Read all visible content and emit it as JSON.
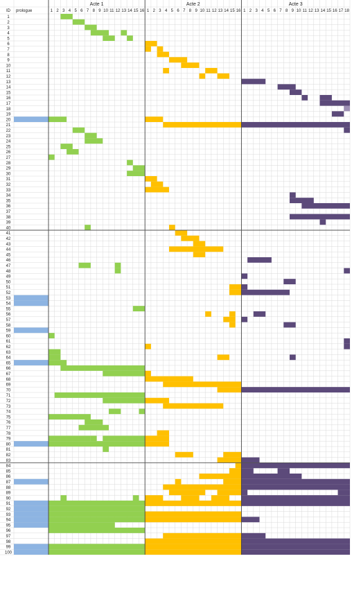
{
  "chart_data": {
    "type": "heatmap",
    "header": {
      "id_label": "ID",
      "prologue_label": "prologue"
    },
    "acts": [
      {
        "name": "Acte 1",
        "scenes": 16,
        "color": "#92d050"
      },
      {
        "name": "Acte 2",
        "scenes": 16,
        "color": "#ffc000"
      },
      {
        "name": "Acte 3",
        "scenes": 18,
        "color": "#5c4a7a"
      }
    ],
    "prologue_color": "#8db4e2",
    "highlight_color": "#9e8fb4",
    "prologue_rows": [
      20,
      53,
      54,
      59,
      65,
      80,
      87,
      91,
      92,
      93,
      94,
      95,
      99,
      100
    ],
    "highlights": [
      {
        "id": 18,
        "act": 3,
        "scene": 18
      }
    ],
    "characters": [
      {
        "id": 1,
        "a1": [
          [
            3,
            4
          ]
        ],
        "a2": [],
        "a3": []
      },
      {
        "id": 2,
        "a1": [
          [
            5,
            6
          ]
        ],
        "a2": [],
        "a3": []
      },
      {
        "id": 3,
        "a1": [
          [
            7,
            8
          ]
        ],
        "a2": [],
        "a3": []
      },
      {
        "id": 4,
        "a1": [
          [
            8,
            10
          ],
          [
            13,
            13
          ]
        ],
        "a2": [],
        "a3": []
      },
      {
        "id": 5,
        "a1": [
          [
            10,
            11
          ],
          [
            14,
            14
          ]
        ],
        "a2": [],
        "a3": []
      },
      {
        "id": 6,
        "a1": [],
        "a2": [
          [
            1,
            2
          ]
        ],
        "a3": []
      },
      {
        "id": 7,
        "a1": [],
        "a2": [
          [
            1,
            1
          ],
          [
            3,
            3
          ]
        ],
        "a3": []
      },
      {
        "id": 8,
        "a1": [],
        "a2": [
          [
            3,
            4
          ]
        ],
        "a3": []
      },
      {
        "id": 9,
        "a1": [],
        "a2": [
          [
            5,
            7
          ]
        ],
        "a3": []
      },
      {
        "id": 10,
        "a1": [],
        "a2": [
          [
            7,
            9
          ]
        ],
        "a3": []
      },
      {
        "id": 11,
        "a1": [],
        "a2": [
          [
            4,
            4
          ],
          [
            11,
            12
          ]
        ],
        "a3": []
      },
      {
        "id": 12,
        "a1": [],
        "a2": [
          [
            10,
            10
          ],
          [
            13,
            14
          ]
        ],
        "a3": []
      },
      {
        "id": 13,
        "a1": [],
        "a2": [],
        "a3": [
          [
            1,
            4
          ]
        ]
      },
      {
        "id": 14,
        "a1": [],
        "a2": [],
        "a3": [
          [
            7,
            9
          ]
        ]
      },
      {
        "id": 15,
        "a1": [],
        "a2": [],
        "a3": [
          [
            9,
            10
          ]
        ]
      },
      {
        "id": 16,
        "a1": [],
        "a2": [],
        "a3": [
          [
            11,
            11
          ],
          [
            14,
            15
          ]
        ]
      },
      {
        "id": 17,
        "a1": [],
        "a2": [],
        "a3": [
          [
            14,
            18
          ]
        ]
      },
      {
        "id": 18,
        "a1": [],
        "a2": [],
        "a3": []
      },
      {
        "id": 19,
        "a1": [],
        "a2": [],
        "a3": [
          [
            16,
            17
          ]
        ]
      },
      {
        "id": 20,
        "a1": [
          [
            1,
            3
          ]
        ],
        "a2": [
          [
            1,
            3
          ]
        ],
        "a3": []
      },
      {
        "id": 21,
        "a1": [],
        "a2": [
          [
            4,
            16
          ]
        ],
        "a3": [
          [
            1,
            18
          ]
        ]
      },
      {
        "id": 22,
        "a1": [
          [
            5,
            6
          ]
        ],
        "a2": [],
        "a3": [
          [
            18,
            18
          ]
        ]
      },
      {
        "id": 23,
        "a1": [
          [
            7,
            8
          ]
        ],
        "a2": [],
        "a3": []
      },
      {
        "id": 24,
        "a1": [
          [
            7,
            9
          ]
        ],
        "a2": [],
        "a3": []
      },
      {
        "id": 25,
        "a1": [
          [
            3,
            4
          ]
        ],
        "a2": [],
        "a3": []
      },
      {
        "id": 26,
        "a1": [
          [
            4,
            5
          ]
        ],
        "a2": [],
        "a3": []
      },
      {
        "id": 27,
        "a1": [
          [
            1,
            1
          ]
        ],
        "a2": [],
        "a3": []
      },
      {
        "id": 28,
        "a1": [
          [
            14,
            14
          ]
        ],
        "a2": [],
        "a3": []
      },
      {
        "id": 29,
        "a1": [
          [
            15,
            16
          ]
        ],
        "a2": [],
        "a3": []
      },
      {
        "id": 30,
        "a1": [
          [
            14,
            16
          ]
        ],
        "a2": [],
        "a3": []
      },
      {
        "id": 31,
        "a1": [],
        "a2": [
          [
            1,
            2
          ]
        ],
        "a3": []
      },
      {
        "id": 32,
        "a1": [],
        "a2": [
          [
            2,
            3
          ]
        ],
        "a3": []
      },
      {
        "id": 33,
        "a1": [],
        "a2": [
          [
            1,
            4
          ]
        ],
        "a3": []
      },
      {
        "id": 34,
        "a1": [],
        "a2": [],
        "a3": [
          [
            9,
            9
          ]
        ]
      },
      {
        "id": 35,
        "a1": [],
        "a2": [],
        "a3": [
          [
            9,
            12
          ]
        ]
      },
      {
        "id": 36,
        "a1": [],
        "a2": [],
        "a3": [
          [
            11,
            18
          ]
        ]
      },
      {
        "id": 37,
        "a1": [],
        "a2": [],
        "a3": []
      },
      {
        "id": 38,
        "a1": [],
        "a2": [],
        "a3": [
          [
            9,
            18
          ]
        ]
      },
      {
        "id": 39,
        "a1": [],
        "a2": [],
        "a3": [
          [
            14,
            14
          ]
        ]
      },
      {
        "id": 40,
        "a1": [
          [
            7,
            7
          ]
        ],
        "a2": [
          [
            5,
            5
          ]
        ],
        "a3": []
      },
      {
        "id": 41,
        "a1": [],
        "a2": [
          [
            6,
            7
          ]
        ],
        "a3": []
      },
      {
        "id": 42,
        "a1": [],
        "a2": [
          [
            7,
            9
          ]
        ],
        "a3": []
      },
      {
        "id": 43,
        "a1": [],
        "a2": [
          [
            9,
            10
          ]
        ],
        "a3": []
      },
      {
        "id": 44,
        "a1": [],
        "a2": [
          [
            5,
            13
          ]
        ],
        "a3": []
      },
      {
        "id": 45,
        "a1": [],
        "a2": [
          [
            9,
            10
          ]
        ],
        "a3": []
      },
      {
        "id": 46,
        "a1": [],
        "a2": [],
        "a3": [
          [
            2,
            5
          ]
        ]
      },
      {
        "id": 47,
        "a1": [
          [
            6,
            7
          ],
          [
            12,
            12
          ]
        ],
        "a2": [],
        "a3": []
      },
      {
        "id": 48,
        "a1": [
          [
            12,
            12
          ]
        ],
        "a2": [],
        "a3": [
          [
            18,
            18
          ]
        ]
      },
      {
        "id": 49,
        "a1": [],
        "a2": [],
        "a3": [
          [
            1,
            1
          ]
        ]
      },
      {
        "id": 50,
        "a1": [],
        "a2": [],
        "a3": [
          [
            8,
            9
          ]
        ]
      },
      {
        "id": 51,
        "a1": [],
        "a2": [
          [
            15,
            16
          ]
        ],
        "a3": [
          [
            1,
            1
          ]
        ]
      },
      {
        "id": 52,
        "a1": [],
        "a2": [
          [
            15,
            16
          ]
        ],
        "a3": [
          [
            1,
            8
          ]
        ]
      },
      {
        "id": 53,
        "a1": [],
        "a2": [],
        "a3": []
      },
      {
        "id": 54,
        "a1": [],
        "a2": [],
        "a3": []
      },
      {
        "id": 55,
        "a1": [
          [
            15,
            16
          ]
        ],
        "a2": [],
        "a3": []
      },
      {
        "id": 56,
        "a1": [],
        "a2": [
          [
            11,
            11
          ],
          [
            15,
            15
          ]
        ],
        "a3": [
          [
            3,
            4
          ]
        ]
      },
      {
        "id": 57,
        "a1": [],
        "a2": [
          [
            14,
            15
          ]
        ],
        "a3": [
          [
            1,
            1
          ]
        ]
      },
      {
        "id": 58,
        "a1": [],
        "a2": [
          [
            15,
            15
          ]
        ],
        "a3": [
          [
            8,
            9
          ]
        ]
      },
      {
        "id": 59,
        "a1": [],
        "a2": [],
        "a3": []
      },
      {
        "id": 60,
        "a1": [
          [
            1,
            1
          ]
        ],
        "a2": [],
        "a3": []
      },
      {
        "id": 61,
        "a1": [],
        "a2": [],
        "a3": [
          [
            18,
            18
          ]
        ]
      },
      {
        "id": 62,
        "a1": [],
        "a2": [
          [
            1,
            1
          ]
        ],
        "a3": [
          [
            18,
            18
          ]
        ]
      },
      {
        "id": 63,
        "a1": [
          [
            1,
            2
          ]
        ],
        "a2": [],
        "a3": []
      },
      {
        "id": 64,
        "a1": [
          [
            1,
            2
          ]
        ],
        "a2": [
          [
            13,
            14
          ]
        ],
        "a3": [
          [
            9,
            9
          ]
        ]
      },
      {
        "id": 65,
        "a1": [
          [
            1,
            3
          ]
        ],
        "a2": [],
        "a3": []
      },
      {
        "id": 66,
        "a1": [
          [
            3,
            16
          ]
        ],
        "a2": [],
        "a3": []
      },
      {
        "id": 67,
        "a1": [
          [
            10,
            16
          ]
        ],
        "a2": [
          [
            1,
            1
          ]
        ],
        "a3": []
      },
      {
        "id": 68,
        "a1": [],
        "a2": [
          [
            1,
            8
          ]
        ],
        "a3": []
      },
      {
        "id": 69,
        "a1": [],
        "a2": [
          [
            4,
            16
          ]
        ],
        "a3": []
      },
      {
        "id": 70,
        "a1": [],
        "a2": [
          [
            13,
            16
          ]
        ],
        "a3": [
          [
            1,
            18
          ]
        ]
      },
      {
        "id": 71,
        "a1": [
          [
            2,
            16
          ]
        ],
        "a2": [],
        "a3": []
      },
      {
        "id": 72,
        "a1": [
          [
            10,
            16
          ]
        ],
        "a2": [
          [
            1,
            4
          ]
        ],
        "a3": []
      },
      {
        "id": 73,
        "a1": [],
        "a2": [
          [
            4,
            13
          ]
        ],
        "a3": []
      },
      {
        "id": 74,
        "a1": [
          [
            11,
            12
          ],
          [
            16,
            16
          ]
        ],
        "a2": [],
        "a3": []
      },
      {
        "id": 75,
        "a1": [
          [
            1,
            7
          ]
        ],
        "a2": [],
        "a3": []
      },
      {
        "id": 76,
        "a1": [
          [
            7,
            9
          ]
        ],
        "a2": [],
        "a3": []
      },
      {
        "id": 77,
        "a1": [
          [
            6,
            10
          ]
        ],
        "a2": [],
        "a3": []
      },
      {
        "id": 78,
        "a1": [],
        "a2": [
          [
            3,
            4
          ]
        ],
        "a3": []
      },
      {
        "id": 79,
        "a1": [
          [
            1,
            7
          ],
          [
            8,
            8
          ],
          [
            10,
            16
          ]
        ],
        "a2": [
          [
            1,
            4
          ]
        ],
        "a3": []
      },
      {
        "id": 80,
        "a1": [
          [
            1,
            16
          ]
        ],
        "a2": [
          [
            1,
            4
          ]
        ],
        "a3": []
      },
      {
        "id": 81,
        "a1": [
          [
            10,
            10
          ]
        ],
        "a2": [],
        "a3": []
      },
      {
        "id": 82,
        "a1": [],
        "a2": [
          [
            6,
            8
          ],
          [
            14,
            16
          ]
        ],
        "a3": []
      },
      {
        "id": 83,
        "a1": [],
        "a2": [
          [
            13,
            16
          ]
        ],
        "a3": [
          [
            1,
            3
          ]
        ]
      },
      {
        "id": 84,
        "a1": [],
        "a2": [
          [
            16,
            16
          ]
        ],
        "a3": [
          [
            1,
            18
          ]
        ]
      },
      {
        "id": 85,
        "a1": [],
        "a2": [
          [
            15,
            16
          ]
        ],
        "a3": [
          [
            1,
            2
          ],
          [
            7,
            8
          ]
        ]
      },
      {
        "id": 86,
        "a1": [],
        "a2": [
          [
            10,
            16
          ]
        ],
        "a3": [
          [
            1,
            10
          ]
        ]
      },
      {
        "id": 87,
        "a1": [],
        "a2": [
          [
            6,
            6
          ],
          [
            14,
            16
          ]
        ],
        "a3": [
          [
            1,
            18
          ]
        ]
      },
      {
        "id": 88,
        "a1": [],
        "a2": [
          [
            4,
            16
          ]
        ],
        "a3": [
          [
            1,
            18
          ]
        ]
      },
      {
        "id": 89,
        "a1": [],
        "a2": [
          [
            5,
            10
          ],
          [
            13,
            16
          ]
        ],
        "a3": [
          [
            1,
            1
          ],
          [
            17,
            18
          ]
        ]
      },
      {
        "id": 90,
        "a1": [
          [
            3,
            3
          ],
          [
            15,
            15
          ]
        ],
        "a2": [
          [
            1,
            3
          ],
          [
            7,
            9
          ],
          [
            12,
            14
          ]
        ],
        "a3": [
          [
            1,
            8
          ],
          [
            9,
            18
          ]
        ]
      },
      {
        "id": 91,
        "a1": [
          [
            1,
            16
          ]
        ],
        "a2": [
          [
            1,
            16
          ]
        ],
        "a3": [
          [
            1,
            18
          ]
        ]
      },
      {
        "id": 92,
        "a1": [
          [
            1,
            16
          ]
        ],
        "a2": [],
        "a3": []
      },
      {
        "id": 93,
        "a1": [
          [
            1,
            16
          ]
        ],
        "a2": [
          [
            1,
            16
          ]
        ],
        "a3": []
      },
      {
        "id": 94,
        "a1": [
          [
            1,
            16
          ]
        ],
        "a2": [
          [
            1,
            16
          ]
        ],
        "a3": [
          [
            1,
            3
          ]
        ]
      },
      {
        "id": 95,
        "a1": [
          [
            1,
            11
          ]
        ],
        "a2": [],
        "a3": []
      },
      {
        "id": 96,
        "a1": [
          [
            1,
            16
          ]
        ],
        "a2": [],
        "a3": []
      },
      {
        "id": 97,
        "a1": [],
        "a2": [
          [
            4,
            16
          ]
        ],
        "a3": [
          [
            1,
            4
          ]
        ]
      },
      {
        "id": 98,
        "a1": [],
        "a2": [
          [
            1,
            16
          ]
        ],
        "a3": [
          [
            1,
            18
          ]
        ]
      },
      {
        "id": 99,
        "a1": [
          [
            1,
            16
          ]
        ],
        "a2": [
          [
            1,
            16
          ]
        ],
        "a3": [
          [
            1,
            18
          ]
        ]
      },
      {
        "id": 100,
        "a1": [
          [
            1,
            16
          ]
        ],
        "a2": [
          [
            1,
            16
          ]
        ],
        "a3": [
          [
            1,
            18
          ]
        ]
      }
    ]
  }
}
